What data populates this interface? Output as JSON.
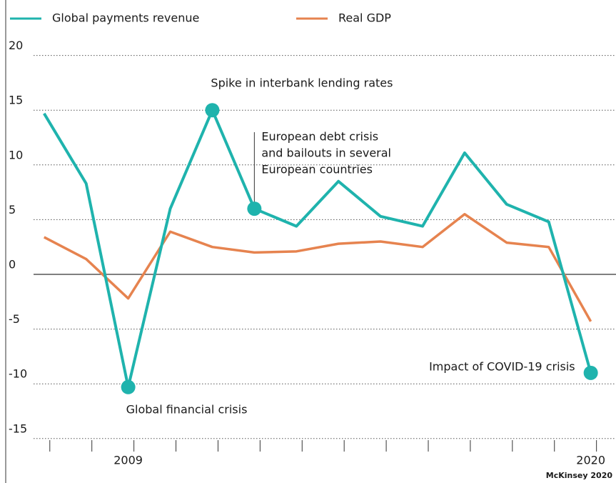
{
  "chart_data": {
    "type": "line",
    "x": [
      2007,
      2008,
      2009,
      2010,
      2011,
      2012,
      2013,
      2014,
      2015,
      2016,
      2017,
      2018,
      2019,
      2020
    ],
    "series": [
      {
        "name": "Global payments revenue",
        "color": "#1fb3ad",
        "values": [
          14.7,
          8.3,
          -10.3,
          6.0,
          15.0,
          6.0,
          4.4,
          8.5,
          5.3,
          4.4,
          11.1,
          6.4,
          4.8,
          -9.0
        ]
      },
      {
        "name": "Real GDP",
        "color": "#e6834f",
        "values": [
          3.4,
          1.4,
          -2.2,
          3.9,
          2.5,
          2.0,
          2.1,
          2.8,
          3.0,
          2.5,
          5.5,
          2.9,
          2.5,
          -4.3
        ]
      }
    ],
    "xlim": [
      2006.8,
      2020.6
    ],
    "xticks": [
      2009,
      2020
    ],
    "ylim": [
      -16.5,
      21.5
    ],
    "yticks": [
      -15,
      -10,
      -5,
      0,
      5,
      10,
      15,
      20
    ],
    "grid": true,
    "legend": "top",
    "annotations": [
      {
        "point": 2,
        "lines": [
          "Global financial crisis"
        ]
      },
      {
        "point": 4,
        "lines": [
          "Spike in interbank lending rates"
        ]
      },
      {
        "point": 5,
        "lines": [
          "European debt crisis",
          "and bailouts in several",
          "European countries"
        ]
      },
      {
        "point": 13,
        "lines": [
          "Impact of COVID-19 crisis"
        ]
      }
    ],
    "source": "McKinsey 2020"
  }
}
